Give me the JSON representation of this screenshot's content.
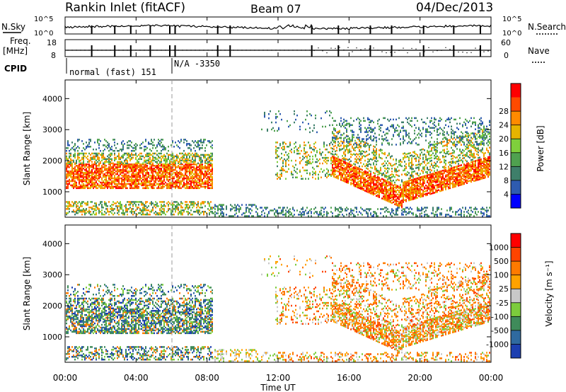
{
  "header": {
    "station": "Rankin Inlet (fitACF)",
    "beam": "Beam 07",
    "date": "04/Dec/2013"
  },
  "status": {
    "nsky_label": "N.Sky",
    "nsearch_label": "N.Search",
    "count_ticks_left": [
      "10^5",
      "10^0"
    ],
    "count_ticks_right": [
      "10^5",
      "10^0"
    ],
    "freq_label_1": "Freq.",
    "freq_label_2": "[MHz]",
    "freq_ticks": [
      "18",
      "8"
    ],
    "nave_label": "Nave",
    "nave_ticks": [
      "60",
      "0"
    ],
    "cpid_label": "CPID",
    "cpid_1": "normal (fast) 151",
    "cpid_2": "N/A -3350"
  },
  "chart_data": [
    {
      "type": "heatmap",
      "name": "power",
      "ylabel": "Slant Range [km]",
      "xlabel": "Time UT",
      "x_ticks": [
        "00:00",
        "04:00",
        "08:00",
        "12:00",
        "16:00",
        "20:00",
        "00:00"
      ],
      "y_ticks": [
        1000,
        2000,
        3000,
        4000
      ],
      "ylim": [
        180,
        4600
      ],
      "colorbar": {
        "label": "Power [dB]",
        "ticks": [
          "4",
          "8",
          "12",
          "16",
          "20",
          "24",
          "28"
        ],
        "colors": [
          "#0000ff",
          "#2e5bb0",
          "#3e7f6a",
          "#4fa14f",
          "#7fcf3c",
          "#e6b400",
          "#ff8a00",
          "#ff4a00",
          "#ff0000"
        ]
      }
    },
    {
      "type": "heatmap",
      "name": "velocity",
      "ylabel": "Slant Range [km]",
      "xlabel": "Time UT",
      "x_ticks": [
        "00:00",
        "04:00",
        "08:00",
        "12:00",
        "16:00",
        "20:00",
        "00:00"
      ],
      "y_ticks": [
        1000,
        2000,
        3000,
        4000
      ],
      "ylim": [
        180,
        4600
      ],
      "colorbar": {
        "label": "Velocity [m s⁻¹]",
        "ticks": [
          "1000",
          "500",
          "100",
          "25",
          "-25",
          "-100",
          "-500",
          "-1000"
        ],
        "colors": [
          "#1c3fb0",
          "#2f6aa0",
          "#3f8b5a",
          "#7ccc3c",
          "#c8c8c8",
          "#ffa200",
          "#ff7a00",
          "#ff4400",
          "#ff0000"
        ]
      }
    }
  ],
  "colors": {
    "frame": "#000000",
    "background": "#ffffff"
  }
}
